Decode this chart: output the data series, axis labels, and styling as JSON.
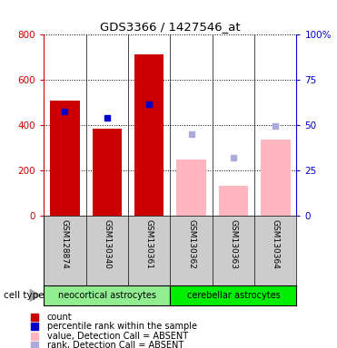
{
  "title": "GDS3366 / 1427546_at",
  "samples": [
    "GSM128874",
    "GSM130340",
    "GSM130361",
    "GSM130362",
    "GSM130363",
    "GSM130364"
  ],
  "group1_label": "neocortical astrocytes",
  "group1_color": "#90EE90",
  "group1_indices": [
    0,
    1,
    2
  ],
  "group2_label": "cerebellar astrocytes",
  "group2_color": "#00EE00",
  "group2_indices": [
    3,
    4,
    5
  ],
  "count_values": [
    510,
    385,
    715,
    null,
    null,
    null
  ],
  "count_color": "#CC0000",
  "percentile_values": [
    462,
    432,
    492,
    null,
    null,
    null
  ],
  "percentile_color": "#0000CC",
  "absent_value_values": [
    null,
    null,
    null,
    248,
    133,
    335
  ],
  "absent_value_color": "#FFB6C1",
  "absent_rank_values": [
    null,
    null,
    null,
    362,
    258,
    395
  ],
  "absent_rank_color": "#AAAADD",
  "left_ylim": [
    0,
    800
  ],
  "right_ylim": [
    0,
    100
  ],
  "left_yticks": [
    0,
    200,
    400,
    600,
    800
  ],
  "right_yticks": [
    0,
    25,
    50,
    75,
    100
  ],
  "right_yticklabels": [
    "0",
    "25",
    "50",
    "75",
    "100%"
  ],
  "left_ytick_color": "#CC0000",
  "right_ytick_color": "#0000CC",
  "bg_color": "#FFFFFF",
  "plot_bg_color": "#FFFFFF",
  "sample_bg_color": "#CCCCCC",
  "legend_items": [
    {
      "color": "#CC0000",
      "label": "count"
    },
    {
      "color": "#0000CC",
      "label": "percentile rank within the sample"
    },
    {
      "color": "#FFB6C1",
      "label": "value, Detection Call = ABSENT"
    },
    {
      "color": "#AAAADD",
      "label": "rank, Detection Call = ABSENT"
    }
  ]
}
